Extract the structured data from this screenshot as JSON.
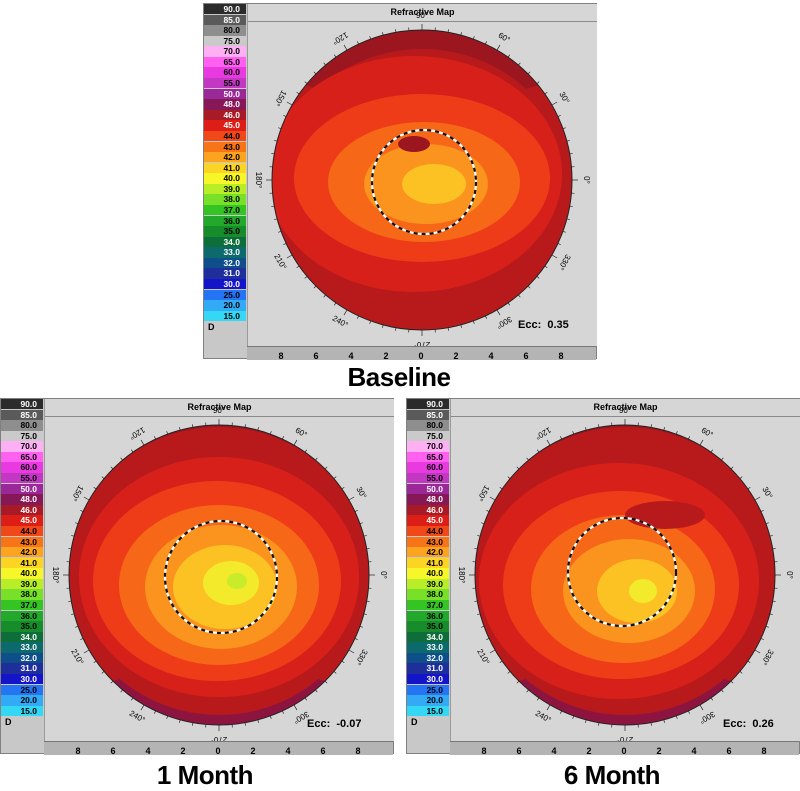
{
  "legend": {
    "unit": "D",
    "entries": [
      {
        "value": "90.0",
        "color": "#2b2b2b",
        "dark": true
      },
      {
        "value": "85.0",
        "color": "#5a5a5a",
        "dark": true
      },
      {
        "value": "80.0",
        "color": "#8e8e8e",
        "dark": false
      },
      {
        "value": "75.0",
        "color": "#cacaca",
        "dark": false
      },
      {
        "value": "70.0",
        "color": "#ffb0f4",
        "dark": false
      },
      {
        "value": "65.0",
        "color": "#ff60f0",
        "dark": false
      },
      {
        "value": "60.0",
        "color": "#e83ae0",
        "dark": false
      },
      {
        "value": "55.0",
        "color": "#c238c2",
        "dark": false
      },
      {
        "value": "50.0",
        "color": "#9a2898",
        "dark": true
      },
      {
        "value": "48.0",
        "color": "#861858",
        "dark": true
      },
      {
        "value": "46.0",
        "color": "#a81a26",
        "dark": true
      },
      {
        "value": "45.0",
        "color": "#dc1e16",
        "dark": true
      },
      {
        "value": "44.0",
        "color": "#f04818",
        "dark": false
      },
      {
        "value": "43.0",
        "color": "#f87418",
        "dark": false
      },
      {
        "value": "42.0",
        "color": "#fca420",
        "dark": false
      },
      {
        "value": "41.0",
        "color": "#fcd424",
        "dark": false
      },
      {
        "value": "40.0",
        "color": "#f6f628",
        "dark": false
      },
      {
        "value": "39.0",
        "color": "#b8ee28",
        "dark": false
      },
      {
        "value": "38.0",
        "color": "#78e028",
        "dark": false
      },
      {
        "value": "37.0",
        "color": "#34c424",
        "dark": false
      },
      {
        "value": "36.0",
        "color": "#22a82a",
        "dark": false
      },
      {
        "value": "35.0",
        "color": "#168c2a",
        "dark": false
      },
      {
        "value": "34.0",
        "color": "#0e6e3a",
        "dark": true
      },
      {
        "value": "33.0",
        "color": "#0c6a6c",
        "dark": true
      },
      {
        "value": "32.0",
        "color": "#0e4e8a",
        "dark": true
      },
      {
        "value": "31.0",
        "color": "#1e2e9a",
        "dark": true
      },
      {
        "value": "30.0",
        "color": "#1414c8",
        "dark": true
      },
      {
        "value": "25.0",
        "color": "#2474f4",
        "dark": false
      },
      {
        "value": "20.0",
        "color": "#32aaf6",
        "dark": false
      },
      {
        "value": "15.0",
        "color": "#34d8f4",
        "dark": false
      }
    ]
  },
  "map_title": "Refractive Map",
  "ecc_label": "Ecc:",
  "axis_ticks": [
    "8",
    "6",
    "4",
    "2",
    "0",
    "2",
    "4",
    "6",
    "8"
  ],
  "angle_labels": [
    "90°",
    "60°",
    "30°",
    "0°",
    "330°",
    "300°",
    "270°",
    "240°",
    "210°",
    "180°",
    "150°",
    "120°"
  ],
  "maps": [
    {
      "caption": "Baseline",
      "ecc": "0.35",
      "variant": "baseline"
    },
    {
      "caption": "1 Month",
      "ecc": "-0.07",
      "variant": "month1"
    },
    {
      "caption": "6 Month",
      "ecc": "0.26",
      "variant": "month6"
    }
  ]
}
